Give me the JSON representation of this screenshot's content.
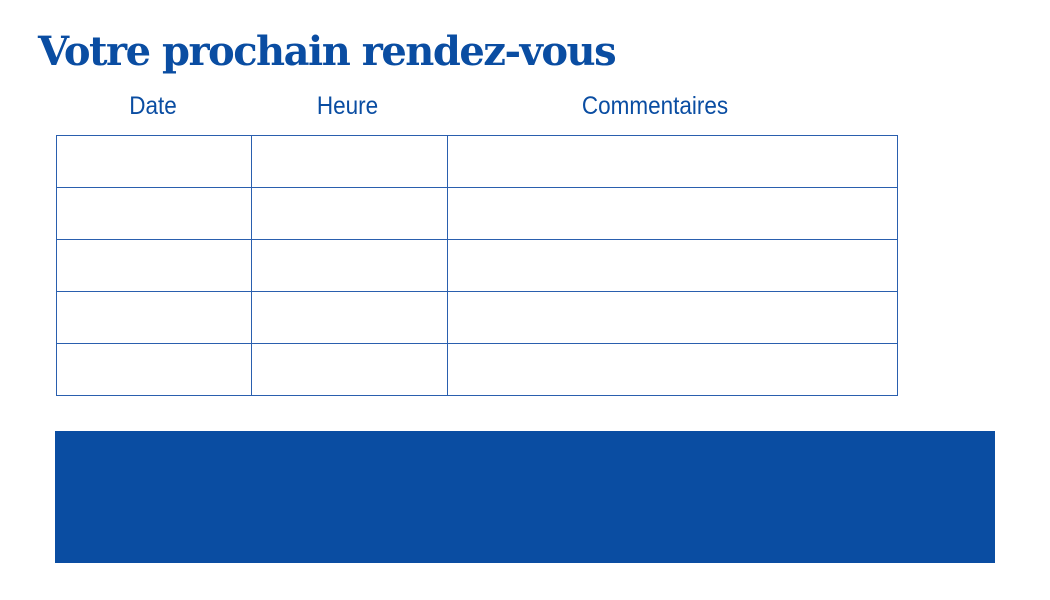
{
  "title": "Votre prochain rendez-vous",
  "columns": [
    "Date",
    "Heure",
    "Commentaires"
  ],
  "rows": [
    [
      "",
      "",
      ""
    ],
    [
      "",
      "",
      ""
    ],
    [
      "",
      "",
      ""
    ],
    [
      "",
      "",
      ""
    ],
    [
      "",
      "",
      ""
    ]
  ],
  "colors": {
    "accent": "#0a4da2"
  }
}
